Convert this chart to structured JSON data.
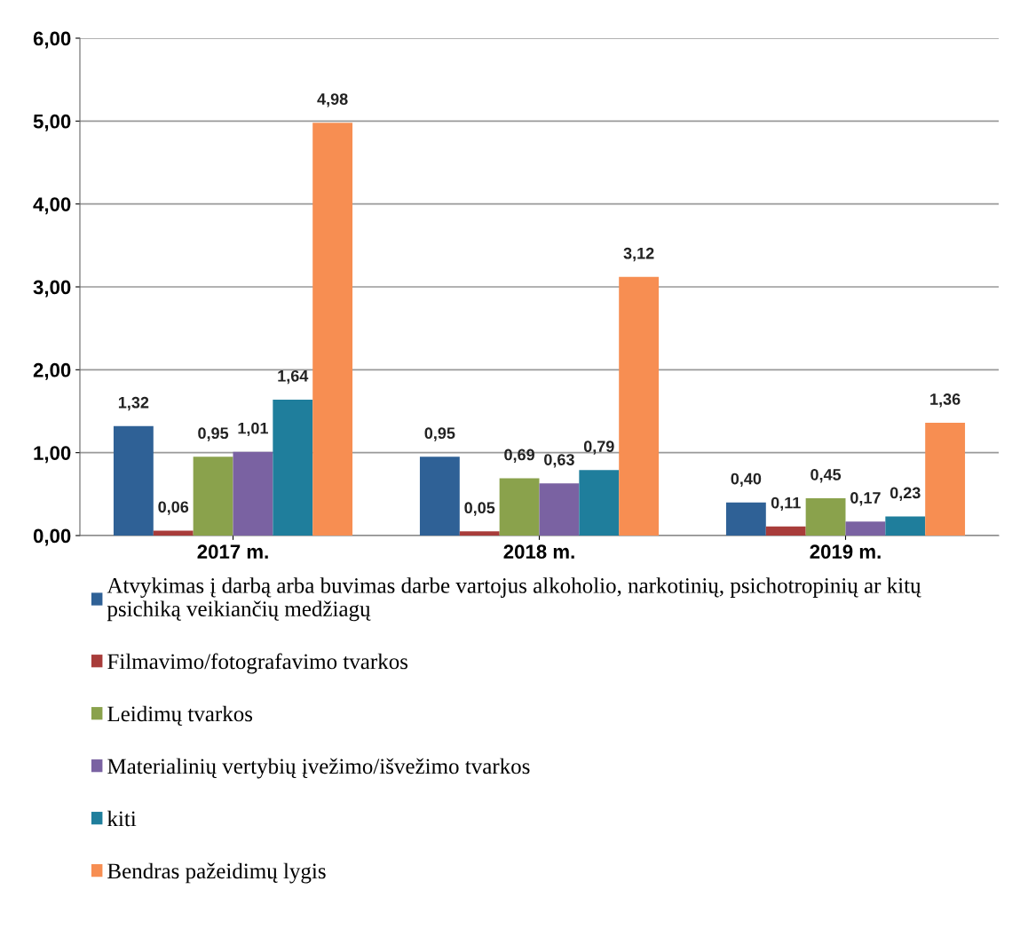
{
  "chart_data": {
    "type": "bar",
    "categories": [
      "2017 m.",
      "2018 m.",
      "2019 m."
    ],
    "series": [
      {
        "name": "Atvykimas į darbą arba buvimas darbe vartojus alkoholio, narkotinių, psichotropinių ar kitų\npsichiką veikiančių medžiagų",
        "color": "#2f6196",
        "values": [
          1.32,
          0.95,
          0.4
        ],
        "value_labels": [
          "1,32",
          "0,95",
          "0,40"
        ]
      },
      {
        "name": "Filmavimo/fotografavimo tvarkos",
        "color": "#a83c3a",
        "values": [
          0.06,
          0.05,
          0.11
        ],
        "value_labels": [
          "0,06",
          "0,05",
          "0,11"
        ]
      },
      {
        "name": "Leidimų tvarkos",
        "color": "#8aa24c",
        "values": [
          0.95,
          0.69,
          0.45
        ],
        "value_labels": [
          "0,95",
          "0,69",
          "0,45"
        ]
      },
      {
        "name": "Materialinių vertybių įvežimo/išvežimo tvarkos",
        "color": "#7a62a2",
        "values": [
          1.01,
          0.63,
          0.17
        ],
        "value_labels": [
          "1,01",
          "0,63",
          "0,17"
        ]
      },
      {
        "name": "kiti",
        "color": "#1f7e9c",
        "values": [
          1.64,
          0.79,
          0.23
        ],
        "value_labels": [
          "1,64",
          "0,79",
          "0,23"
        ]
      },
      {
        "name": "Bendras pažeidimų lygis",
        "color": "#f78e52",
        "values": [
          4.98,
          3.12,
          1.36
        ],
        "value_labels": [
          "4,98",
          "3,12",
          "1,36"
        ]
      }
    ],
    "ylim": [
      0,
      6
    ],
    "yticks": [
      {
        "value": 0,
        "label": "0,00"
      },
      {
        "value": 1,
        "label": "1,00"
      },
      {
        "value": 2,
        "label": "2,00"
      },
      {
        "value": 3,
        "label": "3,00"
      },
      {
        "value": 4,
        "label": "4,00"
      },
      {
        "value": 5,
        "label": "5,00"
      },
      {
        "value": 6,
        "label": "6,00"
      }
    ],
    "grid": "y",
    "legend": "bottom"
  }
}
